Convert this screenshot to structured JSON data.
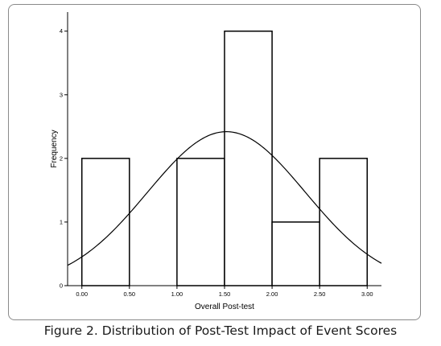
{
  "caption": "Figure 2. Distribution of Post-Test Impact of Event Scores",
  "chart_data": {
    "type": "bar",
    "subtype": "histogram with normal curve",
    "xlabel": "Overall Post-test",
    "ylabel": "Frequency",
    "xlim": [
      -0.15,
      3.15
    ],
    "ylim": [
      0,
      4.3
    ],
    "x_ticks": [
      "0.00",
      "0.50",
      "1.00",
      "1.50",
      "2.00",
      "2.50",
      "3.00"
    ],
    "y_ticks": [
      "0",
      "1",
      "2",
      "3",
      "4"
    ],
    "bins": [
      {
        "from": 0.0,
        "to": 0.5,
        "value": 2
      },
      {
        "from": 0.5,
        "to": 1.0,
        "value": 0
      },
      {
        "from": 1.0,
        "to": 1.5,
        "value": 2
      },
      {
        "from": 1.5,
        "to": 2.0,
        "value": 4
      },
      {
        "from": 2.0,
        "to": 2.5,
        "value": 1
      },
      {
        "from": 2.5,
        "to": 3.0,
        "value": 2
      }
    ],
    "normal_curve": {
      "mean": 1.52,
      "sd": 0.83,
      "peak": 2.42
    },
    "grid": false,
    "colors": {
      "bar_fill": "#ffffff",
      "bar_stroke": "#000000",
      "curve": "#000000"
    }
  }
}
